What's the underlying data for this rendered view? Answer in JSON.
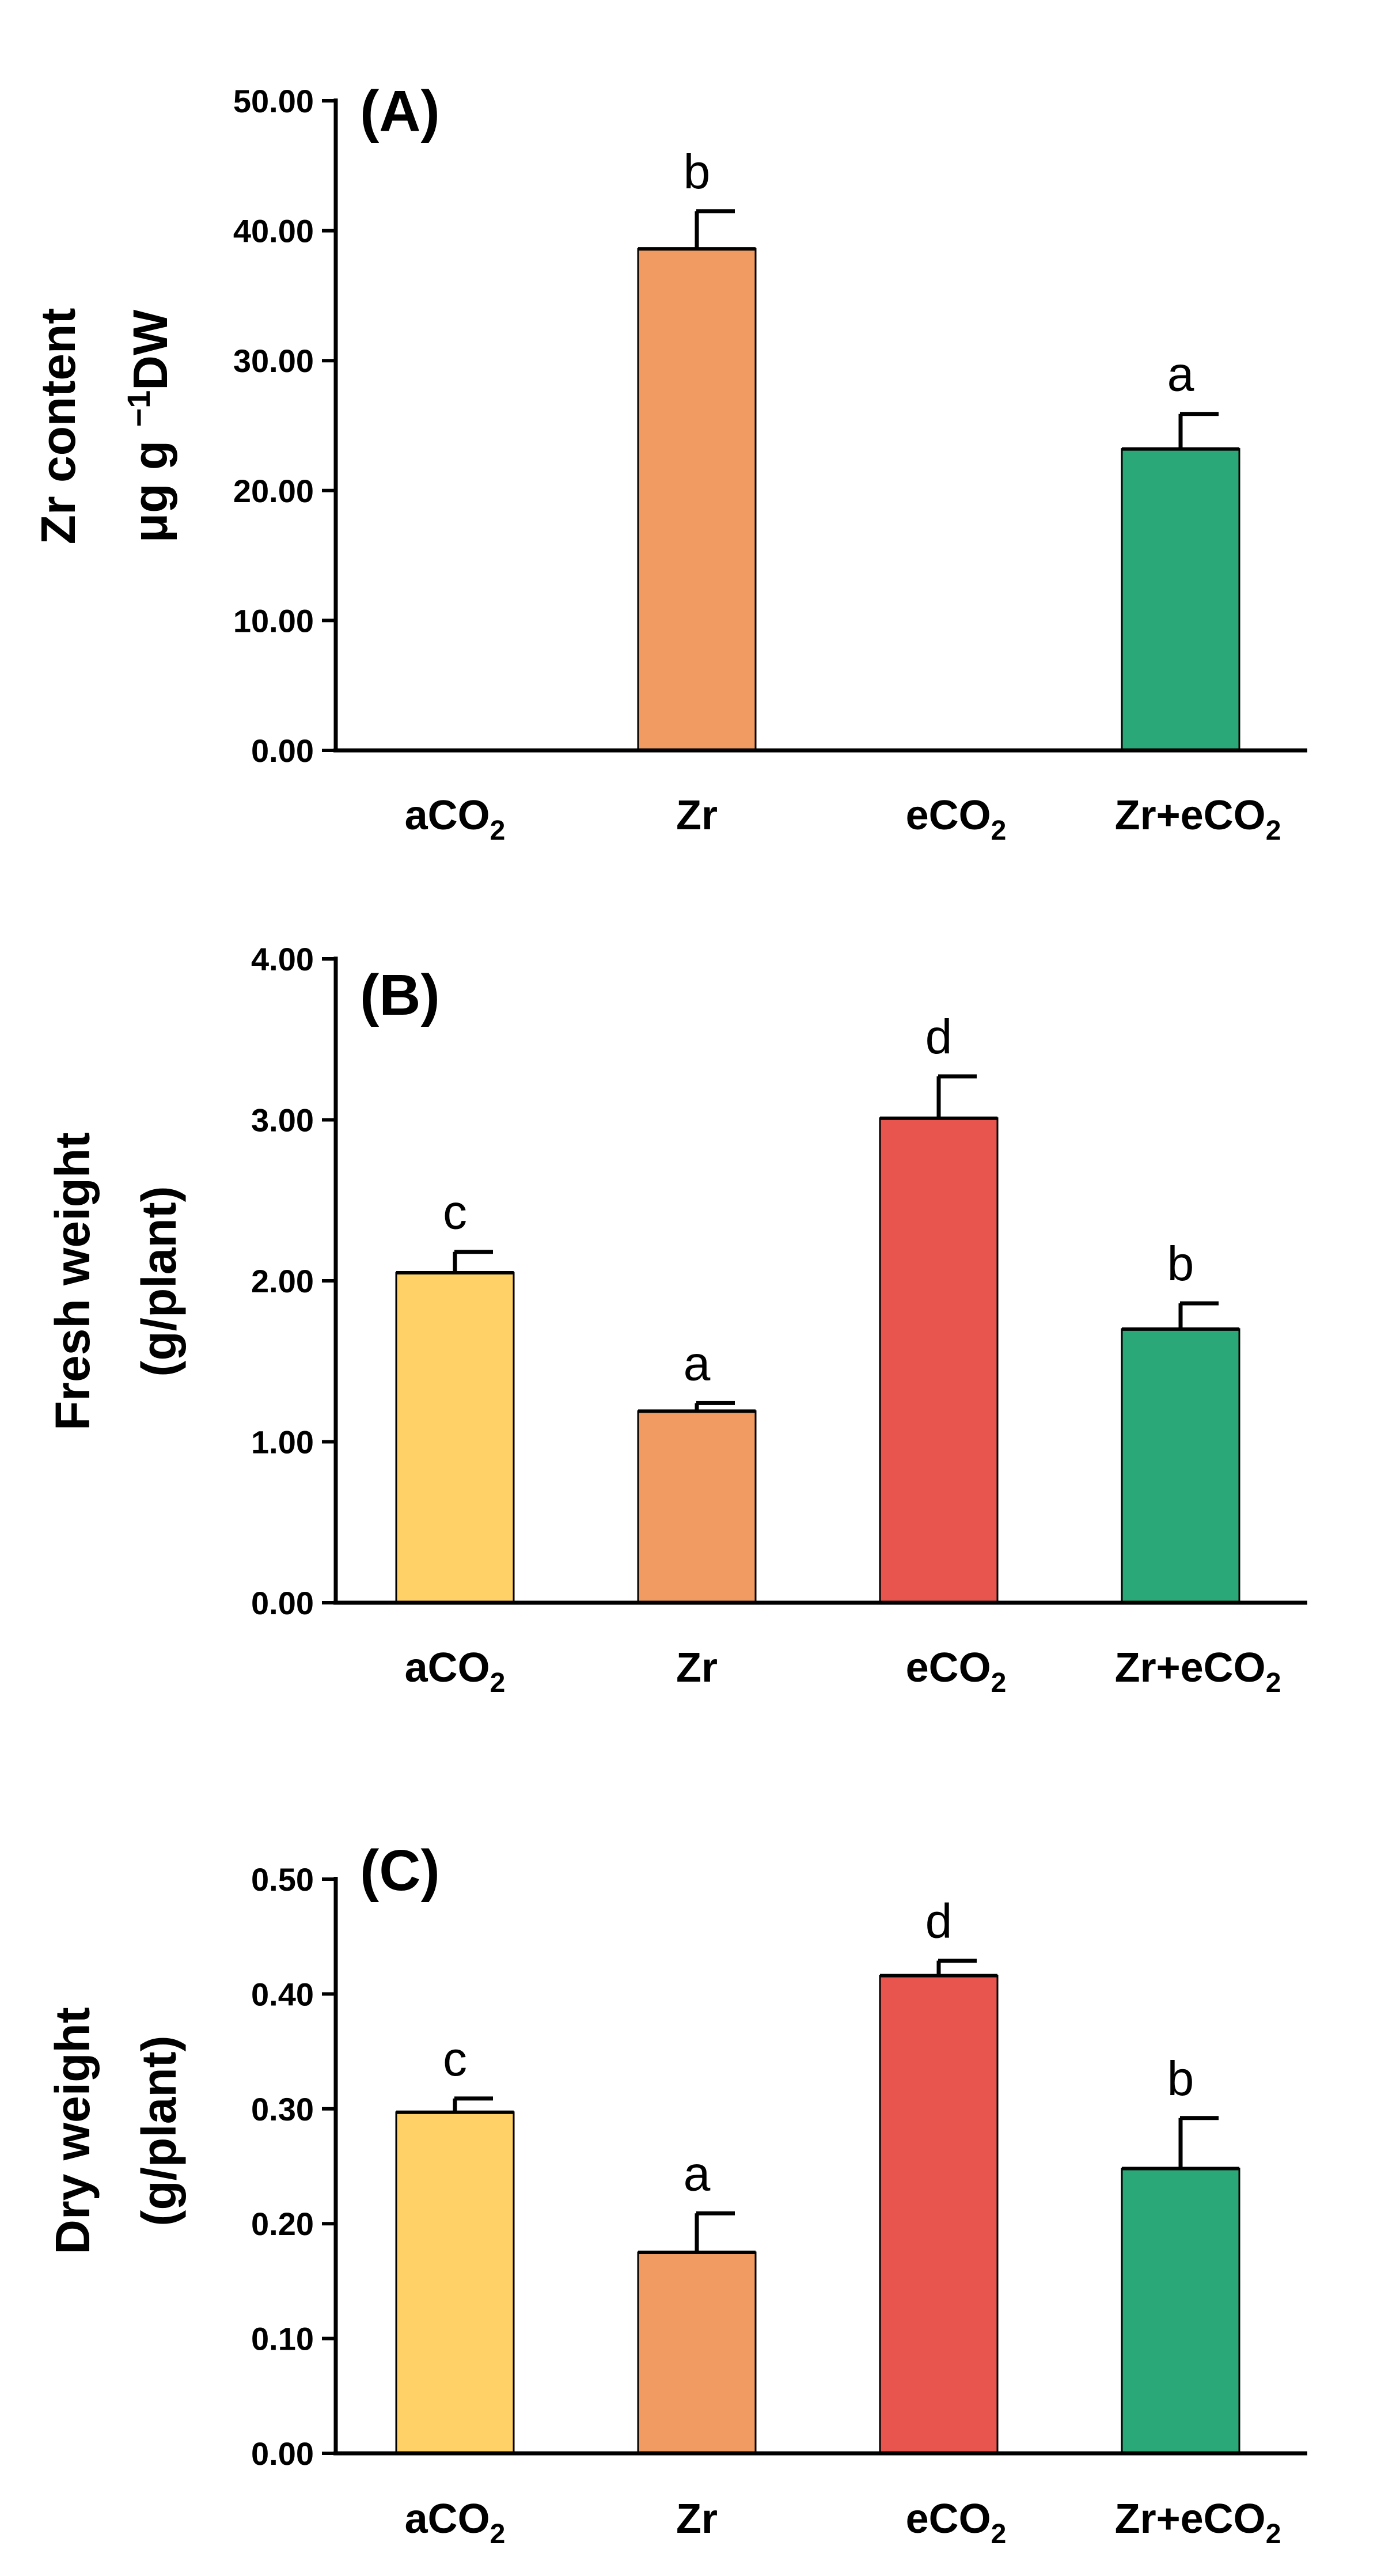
{
  "chart_data": [
    {
      "type": "bar",
      "panel": "(A)",
      "ylabel": [
        "Zr content",
        "μg g",
        "−1",
        "DW"
      ],
      "ylim": [
        0,
        50
      ],
      "yticks": [
        0,
        10,
        20,
        30,
        40,
        50
      ],
      "ytick_labels": [
        "0.00",
        "10.00",
        "20.00",
        "30.00",
        "40.00",
        "50.00"
      ],
      "categories": [
        {
          "main": "aCO",
          "sub": "2"
        },
        {
          "main": "Zr",
          "sub": ""
        },
        {
          "main": "eCO",
          "sub": "2"
        },
        {
          "main": "Zr+eCO",
          "sub": "2"
        }
      ],
      "values": [
        0,
        38.6,
        0,
        23.2
      ],
      "errors": [
        0,
        2.9,
        0,
        2.7
      ],
      "letters": [
        "",
        "b",
        "",
        "a"
      ]
    },
    {
      "type": "bar",
      "panel": "(B)",
      "ylabel": [
        "Fresh weight",
        "(g/plant)"
      ],
      "ylim": [
        0,
        4
      ],
      "yticks": [
        0,
        1,
        2,
        3,
        4
      ],
      "ytick_labels": [
        "0.00",
        "1.00",
        "2.00",
        "3.00",
        "4.00"
      ],
      "categories": [
        {
          "main": "aCO",
          "sub": "2"
        },
        {
          "main": "Zr",
          "sub": ""
        },
        {
          "main": "eCO",
          "sub": "2"
        },
        {
          "main": "Zr+eCO",
          "sub": "2"
        }
      ],
      "values": [
        2.05,
        1.19,
        3.01,
        1.7
      ],
      "errors": [
        0.13,
        0.05,
        0.26,
        0.16
      ],
      "letters": [
        "c",
        "a",
        "d",
        "b"
      ]
    },
    {
      "type": "bar",
      "panel": "(C)",
      "ylabel": [
        "Dry weight",
        "(g/plant)"
      ],
      "ylim": [
        0,
        0.5
      ],
      "yticks": [
        0,
        0.1,
        0.2,
        0.3,
        0.4,
        0.5
      ],
      "ytick_labels": [
        "0.00",
        "0.10",
        "0.20",
        "0.30",
        "0.40",
        "0.50"
      ],
      "categories": [
        {
          "main": "aCO",
          "sub": "2"
        },
        {
          "main": "Zr",
          "sub": ""
        },
        {
          "main": "eCO",
          "sub": "2"
        },
        {
          "main": "Zr+eCO",
          "sub": "2"
        }
      ],
      "values": [
        0.297,
        0.175,
        0.416,
        0.248
      ],
      "errors": [
        0.012,
        0.034,
        0.013,
        0.044
      ],
      "letters": [
        "c",
        "a",
        "d",
        "b"
      ]
    }
  ],
  "colors": {
    "aCO2": "#FFD166",
    "Zr": "#F19A61",
    "eCO2": "#E8544E",
    "ZreCO2": "#2BA877",
    "axis": "#000000"
  }
}
